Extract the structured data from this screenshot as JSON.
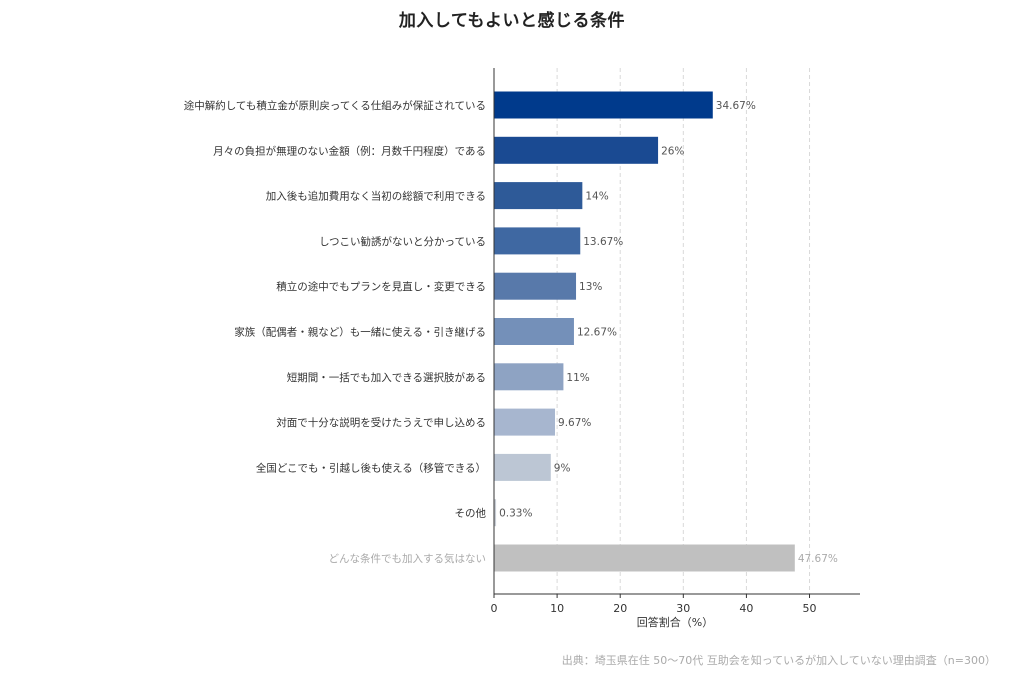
{
  "chart_data": {
    "type": "bar",
    "orientation": "horizontal",
    "title": "加入してもよいと感じる条件",
    "xlabel": "回答割合（%）",
    "ylabel": "",
    "xlim": [
      0,
      58
    ],
    "xticks": [
      0,
      10,
      20,
      30,
      40,
      50
    ],
    "grid": true,
    "categories": [
      "途中解約しても積立金が原則戻ってくる仕組みが保証されている",
      "月々の負担が無理のない金額（例：月数千円程度）である",
      "加入後も追加費用なく当初の総額で利用できる",
      "しつこい勧誘がないと分かっている",
      "積立の途中でもプランを見直し・変更できる",
      "家族（配偶者・親など）も一緒に使える・引き継げる",
      "短期間・一括でも加入できる選択肢がある",
      "対面で十分な説明を受けたうえで申し込める",
      "全国どこでも・引越し後も使える（移管できる）",
      "その他",
      "どんな条件でも加入する気はない"
    ],
    "values": [
      34.67,
      26,
      14,
      13.67,
      13,
      12.67,
      11,
      9.67,
      9,
      0.33,
      47.67
    ],
    "value_labels": [
      "34.67%",
      "26%",
      "14%",
      "13.67%",
      "13%",
      "12.67%",
      "11%",
      "9.67%",
      "9%",
      "0.33%",
      "47.67%"
    ],
    "colors": [
      "#003a8c",
      "#1a4a92",
      "#2e5a98",
      "#3f68a2",
      "#5879aa",
      "#7490b9",
      "#8ea3c3",
      "#a7b6cf",
      "#bcc6d4",
      "#c8cdd4",
      "#c0c0c0"
    ],
    "muted_label_color": "#aaaaaa"
  },
  "source": "出典：埼玉県在住 50〜70代 互助会を知っているが加入していない理由調査（n=300）"
}
